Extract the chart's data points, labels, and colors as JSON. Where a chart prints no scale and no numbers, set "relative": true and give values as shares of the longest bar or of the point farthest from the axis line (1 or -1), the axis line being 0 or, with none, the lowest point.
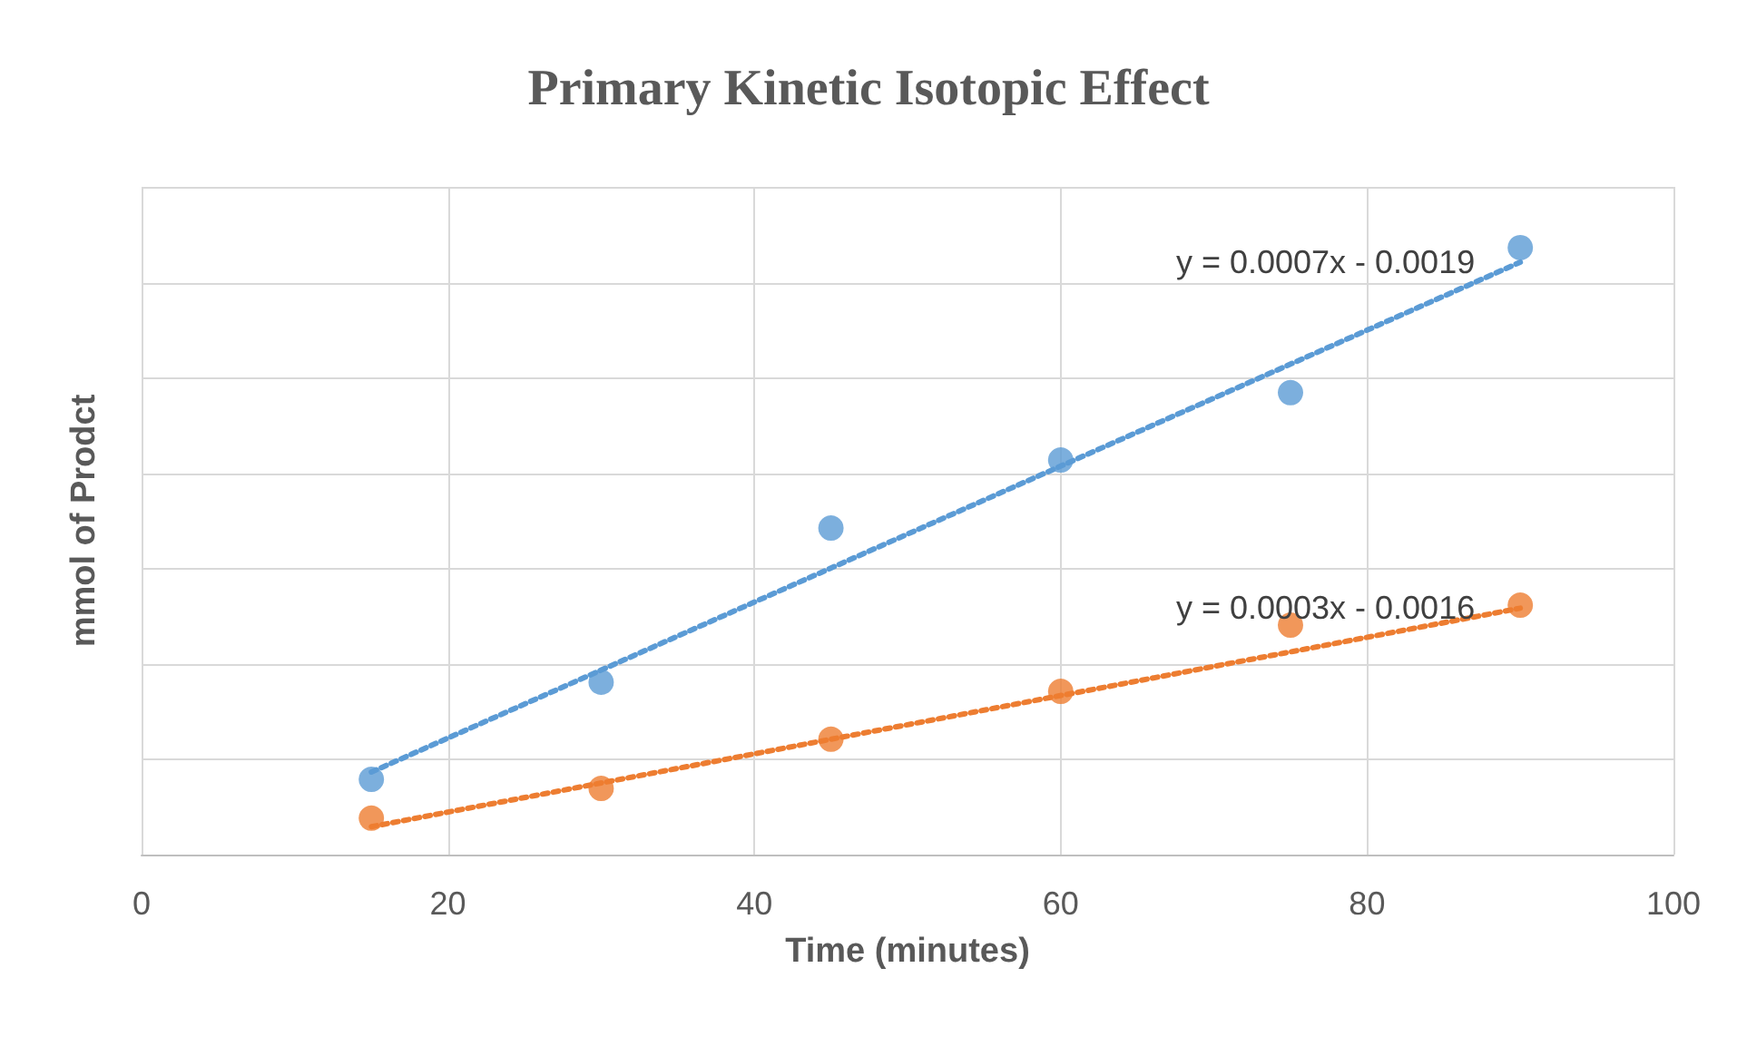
{
  "chart_data": {
    "type": "scatter",
    "title": "Primary Kinetic Isotopic Effect",
    "xlabel": "Time (minutes)",
    "ylabel": "mmol of Prodct",
    "relative": true,
    "grid": true,
    "marker": "circle",
    "xlim": [
      0,
      100
    ],
    "xticks": [
      0,
      20,
      40,
      60,
      80,
      100
    ],
    "tick_labels": "x",
    "series": [
      {
        "color": "#5b9bd5",
        "x": [
          15,
          30,
          45,
          60,
          75,
          90
        ],
        "values": [
          0.124,
          0.284,
          0.538,
          0.65,
          0.761,
          1
        ]
      },
      {
        "color": "#ed7d31",
        "x": [
          15,
          30,
          45,
          60,
          75,
          90
        ],
        "values": [
          0.06,
          0.109,
          0.19,
          0.269,
          0.378,
          0.411
        ]
      },
      {
        "type": "line",
        "line_style": "dotted",
        "marker": "none",
        "color": "#5b9bd5",
        "x": [
          15,
          90
        ],
        "values": [
          0.136,
          0.976
        ]
      },
      {
        "type": "line",
        "line_style": "dotted",
        "marker": "none",
        "color": "#ed7d31",
        "x": [
          15,
          90
        ],
        "values": [
          0.046,
          0.406
        ]
      }
    ],
    "annotations": [
      "y = 0.0007x - 0.0019",
      "y = 0.0003x - 0.0016"
    ]
  }
}
